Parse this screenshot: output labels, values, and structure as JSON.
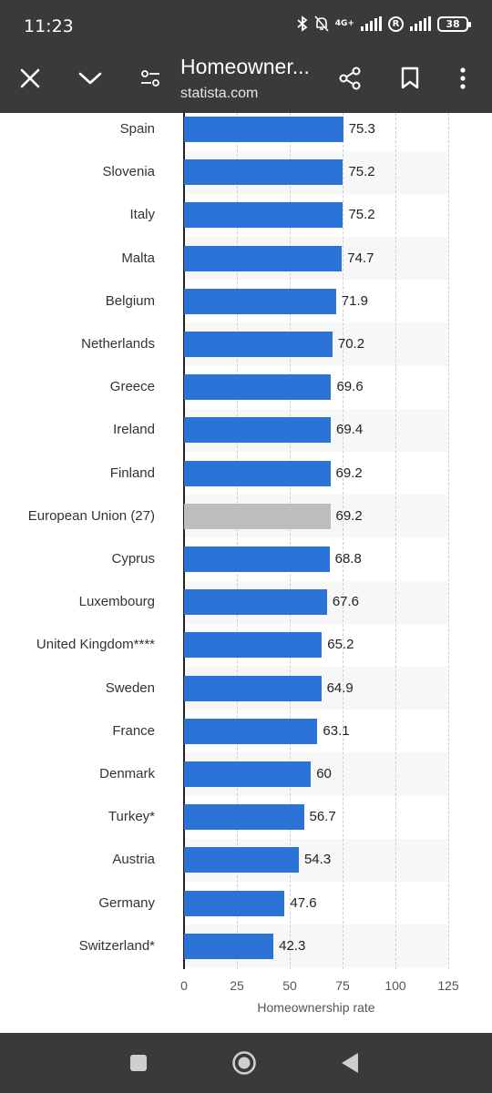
{
  "status_bar": {
    "time": "11:23",
    "network_label": "4G+",
    "carrier_badge": "R",
    "battery": "38",
    "icons": [
      "bluetooth-icon",
      "mute-icon",
      "signal-icon",
      "signal-icon",
      "battery-icon"
    ]
  },
  "toolbar": {
    "title": "Homeowner...",
    "subtitle": "statista.com",
    "icons": [
      "close-icon",
      "chevron-down-icon",
      "settings-icon",
      "share-icon",
      "bookmark-icon",
      "more-icon"
    ]
  },
  "colors": {
    "bar": "#2b73d6",
    "highlight_bar": "#bdbdbd",
    "toolbar": "#3a3a3a"
  },
  "chart_data": {
    "type": "bar",
    "orientation": "horizontal",
    "categories": [
      "Spain",
      "Slovenia",
      "Italy",
      "Malta",
      "Belgium",
      "Netherlands",
      "Greece",
      "Ireland",
      "Finland",
      "European Union (27)",
      "Cyprus",
      "Luxembourg",
      "United Kingdom****",
      "Sweden",
      "France",
      "Denmark",
      "Turkey*",
      "Austria",
      "Germany",
      "Switzerland*"
    ],
    "values": [
      75.3,
      75.2,
      75.2,
      74.7,
      71.9,
      70.2,
      69.6,
      69.4,
      69.2,
      69.2,
      68.8,
      67.6,
      65.2,
      64.9,
      63.1,
      60,
      56.7,
      54.3,
      47.6,
      42.3
    ],
    "value_labels": [
      "75.3",
      "75.2",
      "75.2",
      "74.7",
      "71.9",
      "70.2",
      "69.6",
      "69.4",
      "69.2",
      "69.2",
      "68.8",
      "67.6",
      "65.2",
      "64.9",
      "63.1",
      "60",
      "56.7",
      "54.3",
      "47.6",
      "42.3"
    ],
    "highlight_category": "European Union (27)",
    "xlabel": "Homeownership rate",
    "ylabel": "",
    "xlim": [
      0,
      125
    ],
    "x_ticks": [
      "0",
      "25",
      "50",
      "75",
      "100",
      "125"
    ],
    "grid": true,
    "legend": "none"
  },
  "nav_bar": {
    "icons": [
      "recents-icon",
      "home-icon",
      "back-icon"
    ]
  }
}
